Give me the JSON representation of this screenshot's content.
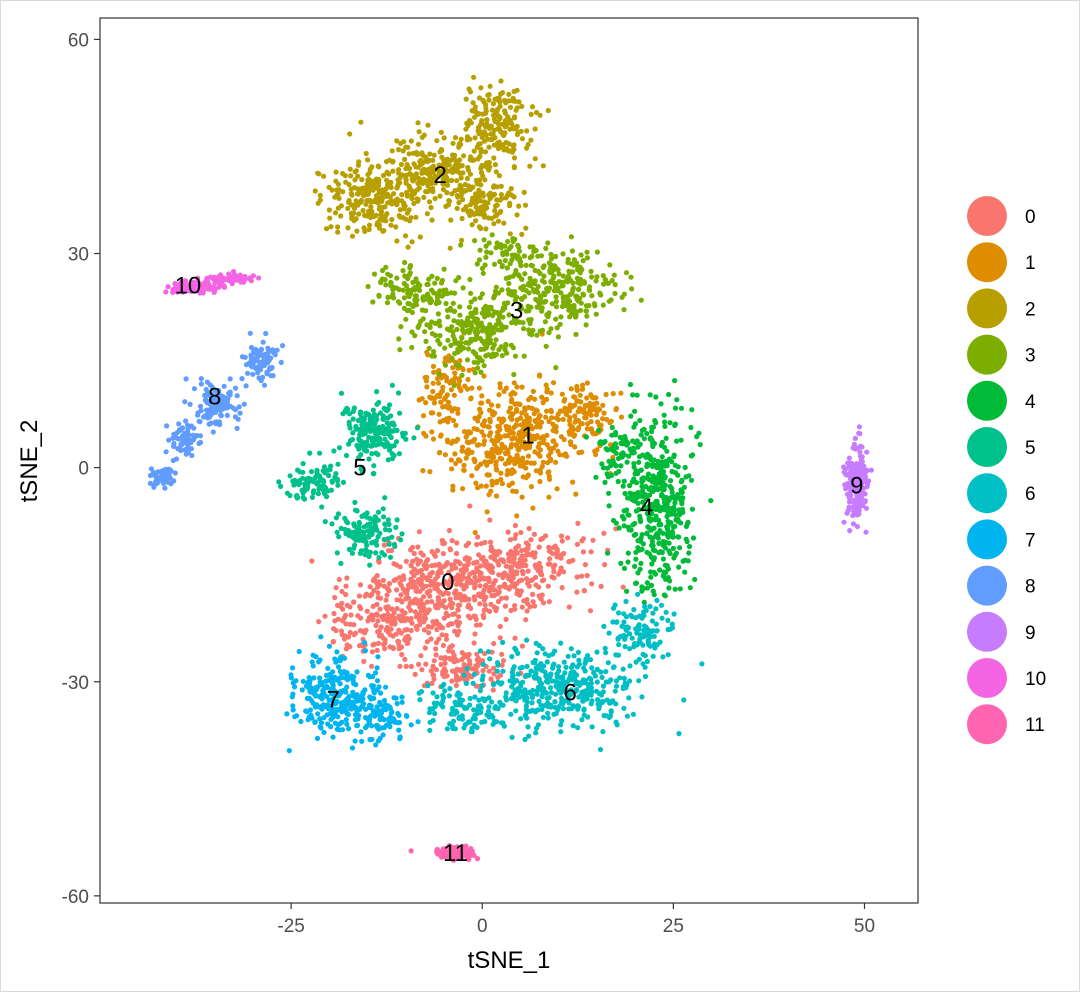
{
  "chart_data": {
    "type": "scatter",
    "title": "",
    "xlabel": "tSNE_1",
    "ylabel": "tSNE_2",
    "xlim": [
      -50,
      57
    ],
    "ylim": [
      -61,
      63
    ],
    "x_ticks": [
      -25,
      0,
      25,
      50
    ],
    "y_ticks": [
      -60,
      -30,
      0,
      30,
      60
    ],
    "grid": false,
    "legend_position": "right",
    "series": [
      {
        "name": "0",
        "color": "#F8766D",
        "label_x": -4.5,
        "label_y": -16
      },
      {
        "name": "1",
        "color": "#DE8C00",
        "label_x": 6,
        "label_y": 4.5
      },
      {
        "name": "2",
        "color": "#B79F00",
        "label_x": -5.5,
        "label_y": 41
      },
      {
        "name": "3",
        "color": "#7CAE00",
        "label_x": 4.5,
        "label_y": 22
      },
      {
        "name": "4",
        "color": "#00BA38",
        "label_x": 21.5,
        "label_y": -5.5
      },
      {
        "name": "5",
        "color": "#00C08B",
        "label_x": -16,
        "label_y": 0
      },
      {
        "name": "6",
        "color": "#00BFC4",
        "label_x": 11.5,
        "label_y": -31.5
      },
      {
        "name": "7",
        "color": "#00B4F0",
        "label_x": -19.5,
        "label_y": -32.5
      },
      {
        "name": "8",
        "color": "#619CFF",
        "label_x": -35,
        "label_y": 10
      },
      {
        "name": "9",
        "color": "#C77CFF",
        "label_x": 49,
        "label_y": -2.5
      },
      {
        "name": "10",
        "color": "#F564E3",
        "label_x": -38.5,
        "label_y": 25.5
      },
      {
        "name": "11",
        "color": "#FF64B0",
        "label_x": -3.5,
        "label_y": -54
      }
    ]
  }
}
